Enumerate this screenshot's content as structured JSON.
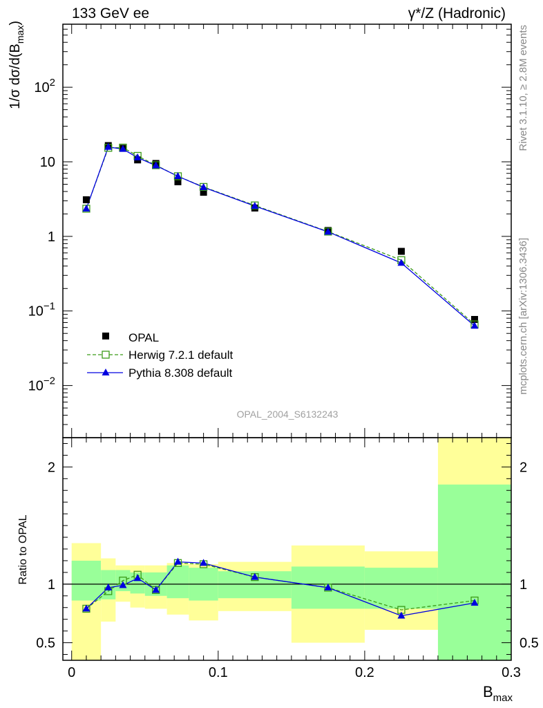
{
  "header": {
    "left": "133 GeV ee",
    "right": "γ*/Z (Hadronic)"
  },
  "side": {
    "rivet": "Rivet 3.1.10, ≥ 2.8M events",
    "site": "mcplots.cern.ch [arXiv:1306.3436]"
  },
  "chart_data": [
    {
      "type": "scatter",
      "title": "",
      "ylabel": "1/σ dσ/d(B_max)",
      "yscale": "log",
      "ylim": [
        0.002,
        700
      ],
      "yticks": [
        {
          "v": 0.01,
          "label": "10^-2"
        },
        {
          "v": 0.1,
          "label": "10^-1"
        },
        {
          "v": 1,
          "label": "1"
        },
        {
          "v": 10,
          "label": "10"
        },
        {
          "v": 100,
          "label": "10^2"
        }
      ],
      "xlim": [
        -0.006,
        0.3
      ],
      "watermark": "OPAL_2004_S6132243",
      "legend_position": "lower-left",
      "legend": [
        {
          "name": "OPAL",
          "marker": "square-filled",
          "color": "#000000"
        },
        {
          "name": "Herwig 7.2.1 default",
          "marker": "square-open",
          "color": "#3a9a17"
        },
        {
          "name": "Pythia 8.308 default",
          "marker": "triangle-filled",
          "color": "#0000e0"
        }
      ],
      "x": [
        0.01,
        0.025,
        0.035,
        0.045,
        0.0575,
        0.0725,
        0.09,
        0.125,
        0.175,
        0.225,
        0.275
      ],
      "series": [
        {
          "name": "OPAL",
          "values": [
            3.1,
            16.5,
            15.2,
            10.6,
            9.5,
            5.4,
            3.9,
            2.4,
            1.2,
            0.63,
            0.077
          ]
        },
        {
          "name": "Herwig 7.2.1 default",
          "values": [
            2.35,
            15.4,
            15.5,
            12.0,
            9.0,
            6.4,
            4.6,
            2.6,
            1.16,
            0.48,
            0.066
          ]
        },
        {
          "name": "Pythia 8.308 default",
          "values": [
            2.35,
            15.8,
            14.8,
            11.4,
            8.9,
            6.4,
            4.55,
            2.55,
            1.15,
            0.44,
            0.063
          ]
        }
      ]
    },
    {
      "type": "line",
      "ylabel": "Ratio to OPAL",
      "xlabel": "B_max",
      "ylim": [
        0.35,
        2.25
      ],
      "xlim": [
        -0.006,
        0.3
      ],
      "yticks": [
        0.5,
        1,
        2
      ],
      "xticks": [
        0,
        0.1,
        0.2,
        0.3
      ],
      "bands": [
        {
          "x0": 0.0,
          "x1": 0.02,
          "green": [
            0.86,
            1.2
          ],
          "yellow": [
            0.35,
            1.35
          ]
        },
        {
          "x0": 0.02,
          "x1": 0.03,
          "green": [
            0.87,
            1.12
          ],
          "yellow": [
            0.68,
            1.22
          ]
        },
        {
          "x0": 0.03,
          "x1": 0.04,
          "green": [
            0.94,
            1.12
          ],
          "yellow": [
            0.85,
            1.16
          ]
        },
        {
          "x0": 0.04,
          "x1": 0.05,
          "green": [
            0.92,
            1.1
          ],
          "yellow": [
            0.8,
            1.16
          ]
        },
        {
          "x0": 0.05,
          "x1": 0.065,
          "green": [
            0.9,
            1.1
          ],
          "yellow": [
            0.79,
            1.16
          ]
        },
        {
          "x0": 0.065,
          "x1": 0.08,
          "green": [
            0.88,
            1.16
          ],
          "yellow": [
            0.74,
            1.18
          ]
        },
        {
          "x0": 0.08,
          "x1": 0.1,
          "green": [
            0.86,
            1.14
          ],
          "yellow": [
            0.69,
            1.17
          ]
        },
        {
          "x0": 0.1,
          "x1": 0.15,
          "green": [
            0.88,
            1.11
          ],
          "yellow": [
            0.77,
            1.19
          ]
        },
        {
          "x0": 0.15,
          "x1": 0.2,
          "green": [
            0.79,
            1.15
          ],
          "yellow": [
            0.5,
            1.33
          ]
        },
        {
          "x0": 0.2,
          "x1": 0.25,
          "green": [
            0.79,
            1.14
          ],
          "yellow": [
            0.61,
            1.28
          ]
        },
        {
          "x0": 0.25,
          "x1": 0.3,
          "green": [
            0.35,
            1.85
          ],
          "yellow": [
            0.35,
            2.25
          ]
        }
      ],
      "x": [
        0.01,
        0.025,
        0.035,
        0.045,
        0.0575,
        0.0725,
        0.09,
        0.125,
        0.175,
        0.225,
        0.275
      ],
      "series": [
        {
          "name": "Herwig 7.2.1 default",
          "values": [
            0.79,
            0.94,
            1.03,
            1.08,
            0.95,
            1.18,
            1.17,
            1.06,
            0.97,
            0.78,
            0.86
          ]
        },
        {
          "name": "Pythia 8.308 default",
          "values": [
            0.79,
            0.97,
            0.99,
            1.05,
            0.95,
            1.19,
            1.18,
            1.06,
            0.97,
            0.73,
            0.84
          ]
        }
      ]
    }
  ],
  "colors": {
    "green_band": "#99ff99",
    "yellow_band": "#ffff99",
    "herwig": "#3a9a17",
    "pythia": "#0000e0",
    "data": "#000000",
    "watermark": "#a0a0a0"
  }
}
